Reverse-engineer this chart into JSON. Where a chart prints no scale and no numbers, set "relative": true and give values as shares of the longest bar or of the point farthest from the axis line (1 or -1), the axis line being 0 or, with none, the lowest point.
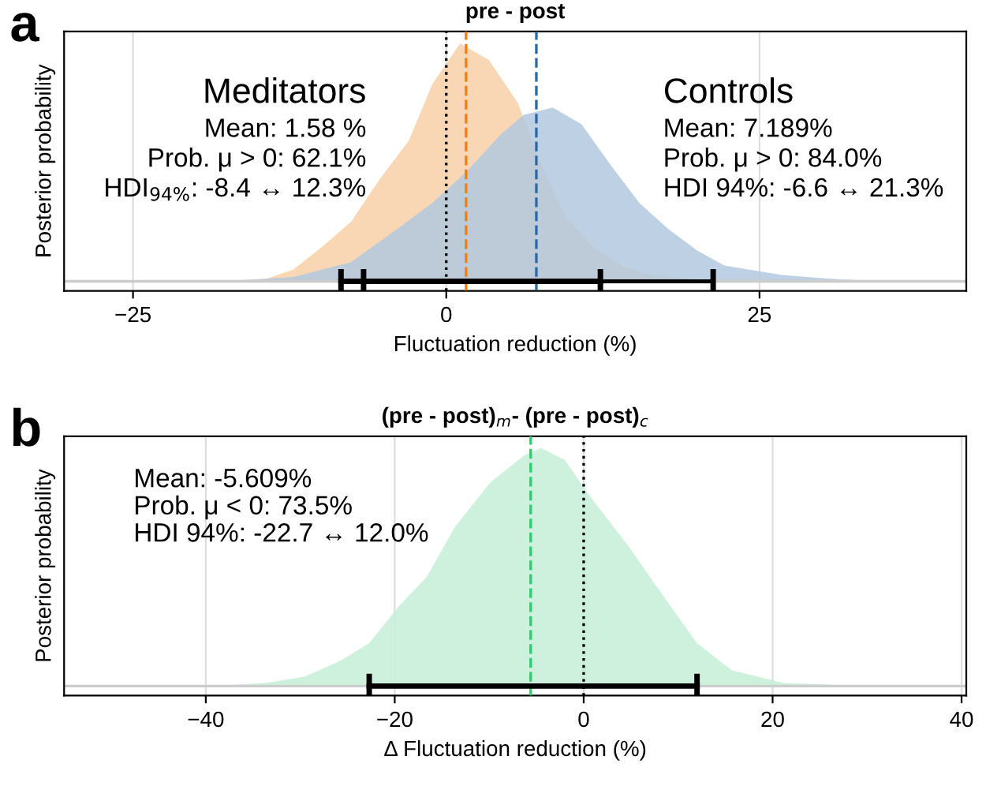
{
  "chart_data": [
    {
      "type": "area",
      "title": "pre - post",
      "xlabel": "Fluctuation reduction (%)",
      "ylabel": "Posterior probability",
      "relative": true,
      "grid": "x",
      "xlim": [
        -30.5,
        41.5
      ],
      "xticks": [
        {
          "value": -25,
          "label": "−25"
        },
        0,
        25
      ],
      "series": [
        {
          "name": "Meditators",
          "color": "#f8d0a8",
          "x": [
            -30,
            -19,
            -14.4,
            -12.2,
            -9.9,
            -7.6,
            -5.3,
            -3,
            -1.1,
            1.1,
            3.4,
            5.7,
            7.6,
            9.4,
            11.7,
            14,
            16.3,
            20,
            24.5,
            41
          ],
          "values": [
            0,
            0,
            0.01,
            0.05,
            0.145,
            0.25,
            0.43,
            0.59,
            0.83,
            1.0,
            0.93,
            0.75,
            0.49,
            0.28,
            0.145,
            0.066,
            0.026,
            0.008,
            0,
            0
          ]
        },
        {
          "name": "Controls",
          "color": "#b3c8de",
          "x": [
            -30,
            -16.7,
            -12.2,
            -7.6,
            -3.9,
            -1.1,
            1.6,
            4.4,
            6.2,
            8.5,
            10.8,
            13.1,
            15.4,
            17.7,
            20,
            22.2,
            26.8,
            31.4,
            36,
            41
          ],
          "values": [
            0,
            0.003,
            0.018,
            0.08,
            0.22,
            0.33,
            0.46,
            0.62,
            0.7,
            0.73,
            0.66,
            0.49,
            0.33,
            0.22,
            0.13,
            0.066,
            0.026,
            0.008,
            0,
            0
          ]
        },
        {
          "type": "line",
          "color": "#000000",
          "x": [
            -8.4,
            12.3
          ],
          "values": [
            0,
            0
          ]
        },
        {
          "type": "line",
          "color": "#000000",
          "x": [
            -6.6,
            21.3
          ],
          "values": [
            0,
            0
          ]
        }
      ],
      "ref_lines": [
        {
          "axis": "x",
          "value": 0,
          "color": "#000000",
          "line_style": "dotted"
        },
        {
          "axis": "x",
          "value": 1.58,
          "color": "#f07f0f",
          "line_style": "dashed"
        },
        {
          "axis": "x",
          "value": 7.189,
          "color": "#2a6aa8",
          "line_style": "dashed"
        }
      ],
      "annotations": [
        "a",
        "Mean: 1.58 %",
        "Prob. μ > 0: 62.1%",
        "HDI$_{94%}$: -8.4 ↔ 12.3%",
        "Mean: 7.189%",
        "Prob. μ > 0: 84.0%",
        "HDI 94%: -6.6 ↔ 21.3%"
      ]
    },
    {
      "type": "area",
      "title": "(pre - post)$_{m}$- (pre - post)$_{c}$",
      "xlabel": "Δ Fluctuation reduction (%)",
      "ylabel": "Posterior probability",
      "relative": true,
      "grid": "x",
      "xlim": [
        -55,
        40.5
      ],
      "xticks": [
        {
          "value": -40,
          "label": "−40"
        },
        {
          "value": -20,
          "label": "−20"
        },
        0,
        20,
        40
      ],
      "series": [
        {
          "color": "#c5eed8",
          "x": [
            -55,
            -39.8,
            -33.7,
            -29.5,
            -25.8,
            -22.7,
            -19.7,
            -16.6,
            -13.6,
            -9.9,
            -6.3,
            -4.5,
            -2,
            1,
            4.7,
            8.4,
            12,
            15.7,
            21.2,
            30.3,
            40.5
          ],
          "values": [
            0,
            0,
            0.013,
            0.04,
            0.105,
            0.18,
            0.33,
            0.46,
            0.67,
            0.855,
            0.97,
            1.0,
            0.95,
            0.78,
            0.59,
            0.38,
            0.18,
            0.066,
            0.013,
            0,
            0
          ]
        },
        {
          "type": "line",
          "color": "#000000",
          "x": [
            -22.7,
            12.0
          ],
          "values": [
            0,
            0
          ]
        }
      ],
      "ref_lines": [
        {
          "axis": "x",
          "value": 0,
          "color": "#000000",
          "line_style": "dotted"
        },
        {
          "axis": "x",
          "value": -5.609,
          "color": "#2ecc71",
          "line_style": "dashed"
        }
      ],
      "annotations": [
        "b",
        "Mean: -5.609%",
        "Prob. μ < 0: 73.5%",
        "HDI 94%: -22.7 ↔ 12.0%"
      ]
    }
  ]
}
